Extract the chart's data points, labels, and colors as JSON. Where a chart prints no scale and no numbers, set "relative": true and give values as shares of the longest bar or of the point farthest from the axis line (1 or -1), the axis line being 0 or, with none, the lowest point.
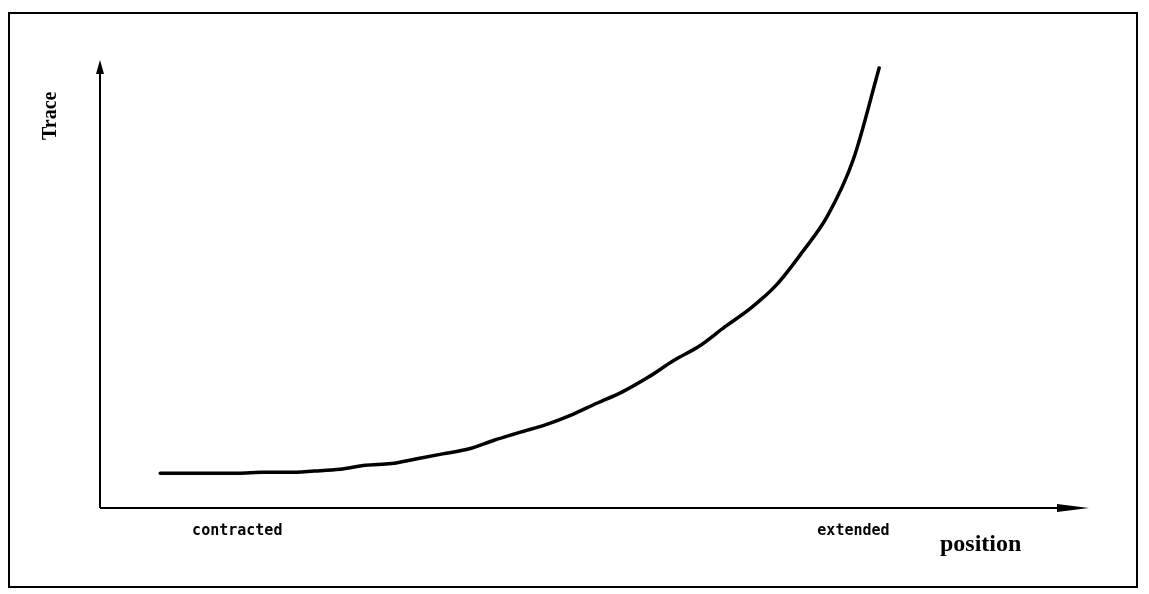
{
  "chart_data": {
    "type": "line",
    "relative": true,
    "xlabel": "position",
    "ylabel": "Trace",
    "categories": [
      null,
      null,
      null,
      "contracted",
      null,
      null,
      null,
      null,
      null,
      null,
      null,
      null,
      null,
      null,
      null,
      null,
      null,
      null,
      null,
      null,
      null,
      null,
      null,
      null,
      null,
      null,
      null,
      "extended",
      null
    ],
    "series": [
      {
        "color": "#000000",
        "values": [
          0.079,
          0.079,
          0.079,
          0.079,
          0.081,
          0.081,
          0.084,
          0.088,
          0.097,
          0.101,
          0.112,
          0.123,
          0.134,
          0.154,
          0.172,
          0.189,
          0.211,
          0.238,
          0.264,
          0.297,
          0.335,
          0.368,
          0.412,
          0.454,
          0.507,
          0.581,
          0.665,
          0.793,
          1
        ]
      }
    ],
    "legend": false,
    "grid": false,
    "marker": "none",
    "line_style": "solid"
  }
}
